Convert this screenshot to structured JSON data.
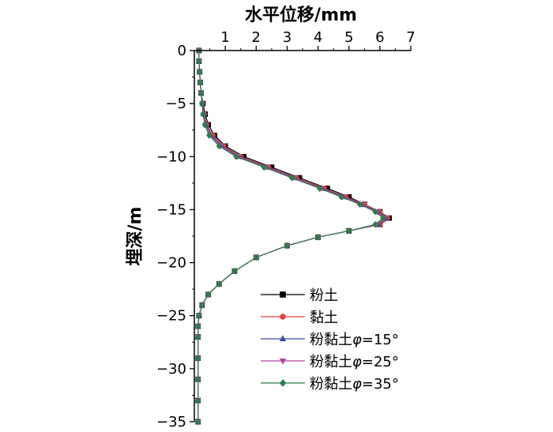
{
  "chart_data": {
    "type": "line",
    "xlabel": "水平位移/mm",
    "ylabel": "埋深/m",
    "xlim": [
      0,
      7
    ],
    "ylim": [
      -35,
      0
    ],
    "x_ticks": [
      1,
      2,
      3,
      4,
      5,
      6,
      7
    ],
    "x_tick_labels": [
      "1",
      "2",
      "3",
      "4",
      "5",
      "6",
      "7"
    ],
    "y_ticks": [
      0,
      -5,
      -10,
      -15,
      -20,
      -25,
      -30,
      -35
    ],
    "y_tick_labels": [
      "0",
      "−5",
      "−10",
      "−15",
      "−20",
      "−25",
      "−30",
      "−35"
    ],
    "x_axis_position": "top",
    "grid": false,
    "legend_position": "bottom-right",
    "series": [
      {
        "name": "粉土",
        "color": "#000000",
        "marker": "square",
        "points": [
          [
            0.15,
            0
          ],
          [
            0.15,
            -1
          ],
          [
            0.17,
            -2
          ],
          [
            0.19,
            -3
          ],
          [
            0.22,
            -4
          ],
          [
            0.28,
            -5
          ],
          [
            0.35,
            -6
          ],
          [
            0.45,
            -7
          ],
          [
            0.65,
            -8
          ],
          [
            1.0,
            -9
          ],
          [
            1.6,
            -10
          ],
          [
            2.5,
            -11
          ],
          [
            3.4,
            -12
          ],
          [
            4.3,
            -13
          ],
          [
            5.0,
            -13.8
          ],
          [
            5.5,
            -14.5
          ],
          [
            6.0,
            -15.2
          ],
          [
            6.3,
            -15.8
          ],
          [
            6.0,
            -16.4
          ],
          [
            5.0,
            -17.0
          ],
          [
            4.0,
            -17.6
          ],
          [
            3.0,
            -18.4
          ],
          [
            2.0,
            -19.5
          ],
          [
            1.3,
            -20.8
          ],
          [
            0.8,
            -22
          ],
          [
            0.45,
            -23
          ],
          [
            0.25,
            -24
          ],
          [
            0.15,
            -25
          ],
          [
            0.12,
            -26
          ],
          [
            0.12,
            -27
          ],
          [
            0.12,
            -29
          ],
          [
            0.12,
            -31
          ],
          [
            0.12,
            -33
          ],
          [
            0.12,
            -35
          ]
        ]
      },
      {
        "name": "黏土",
        "color": "#e8423a",
        "marker": "circle",
        "points": [
          [
            0.15,
            0
          ],
          [
            0.15,
            -1
          ],
          [
            0.17,
            -2
          ],
          [
            0.19,
            -3
          ],
          [
            0.22,
            -4
          ],
          [
            0.26,
            -5
          ],
          [
            0.32,
            -6
          ],
          [
            0.4,
            -7
          ],
          [
            0.6,
            -8
          ],
          [
            0.95,
            -9
          ],
          [
            1.5,
            -10
          ],
          [
            2.4,
            -11
          ],
          [
            3.3,
            -12
          ],
          [
            4.2,
            -13
          ],
          [
            4.9,
            -13.8
          ],
          [
            5.5,
            -14.5
          ],
          [
            6.0,
            -15.2
          ],
          [
            6.25,
            -15.8
          ],
          [
            6.0,
            -16.4
          ],
          [
            5.0,
            -17.0
          ],
          [
            4.0,
            -17.6
          ],
          [
            3.0,
            -18.4
          ],
          [
            2.0,
            -19.5
          ],
          [
            1.3,
            -20.8
          ],
          [
            0.8,
            -22
          ],
          [
            0.45,
            -23
          ],
          [
            0.25,
            -24
          ],
          [
            0.15,
            -25
          ],
          [
            0.12,
            -26
          ],
          [
            0.12,
            -27
          ],
          [
            0.12,
            -29
          ],
          [
            0.12,
            -31
          ],
          [
            0.12,
            -33
          ],
          [
            0.12,
            -35
          ]
        ]
      },
      {
        "name": "粉黏土φ=15°",
        "color": "#3b4a9c",
        "marker": "triangle-up",
        "points": [
          [
            0.15,
            0
          ],
          [
            0.15,
            -1
          ],
          [
            0.17,
            -2
          ],
          [
            0.19,
            -3
          ],
          [
            0.22,
            -4
          ],
          [
            0.26,
            -5
          ],
          [
            0.3,
            -6
          ],
          [
            0.38,
            -7
          ],
          [
            0.55,
            -8
          ],
          [
            0.9,
            -9
          ],
          [
            1.45,
            -10
          ],
          [
            2.35,
            -11
          ],
          [
            3.25,
            -12
          ],
          [
            4.15,
            -13
          ],
          [
            4.85,
            -13.8
          ],
          [
            5.45,
            -14.5
          ],
          [
            5.95,
            -15.2
          ],
          [
            6.2,
            -15.8
          ],
          [
            5.95,
            -16.4
          ],
          [
            5.0,
            -17.0
          ],
          [
            4.0,
            -17.6
          ],
          [
            3.0,
            -18.4
          ],
          [
            2.0,
            -19.5
          ],
          [
            1.3,
            -20.8
          ],
          [
            0.8,
            -22
          ],
          [
            0.45,
            -23
          ],
          [
            0.25,
            -24
          ],
          [
            0.15,
            -25
          ],
          [
            0.12,
            -26
          ],
          [
            0.12,
            -27
          ],
          [
            0.12,
            -29
          ],
          [
            0.12,
            -31
          ],
          [
            0.12,
            -33
          ],
          [
            0.12,
            -35
          ]
        ]
      },
      {
        "name": "粉黏土φ=25°",
        "color": "#b3449e",
        "marker": "triangle-down",
        "points": [
          [
            0.15,
            0
          ],
          [
            0.15,
            -1
          ],
          [
            0.17,
            -2
          ],
          [
            0.19,
            -3
          ],
          [
            0.22,
            -4
          ],
          [
            0.25,
            -5
          ],
          [
            0.3,
            -6
          ],
          [
            0.36,
            -7
          ],
          [
            0.5,
            -8
          ],
          [
            0.85,
            -9
          ],
          [
            1.4,
            -10
          ],
          [
            2.3,
            -11
          ],
          [
            3.2,
            -12
          ],
          [
            4.1,
            -13
          ],
          [
            4.8,
            -13.8
          ],
          [
            5.4,
            -14.5
          ],
          [
            5.9,
            -15.2
          ],
          [
            6.15,
            -15.8
          ],
          [
            5.9,
            -16.4
          ],
          [
            5.0,
            -17.0
          ],
          [
            4.0,
            -17.6
          ],
          [
            3.0,
            -18.4
          ],
          [
            2.0,
            -19.5
          ],
          [
            1.3,
            -20.8
          ],
          [
            0.8,
            -22
          ],
          [
            0.45,
            -23
          ],
          [
            0.25,
            -24
          ],
          [
            0.15,
            -25
          ],
          [
            0.12,
            -26
          ],
          [
            0.12,
            -27
          ],
          [
            0.12,
            -29
          ],
          [
            0.12,
            -31
          ],
          [
            0.12,
            -33
          ],
          [
            0.12,
            -35
          ]
        ]
      },
      {
        "name": "粉黏土φ=35°",
        "color": "#2f7d4a",
        "marker": "diamond",
        "points": [
          [
            0.15,
            0
          ],
          [
            0.15,
            -1
          ],
          [
            0.17,
            -2
          ],
          [
            0.19,
            -3
          ],
          [
            0.22,
            -4
          ],
          [
            0.25,
            -5
          ],
          [
            0.28,
            -6
          ],
          [
            0.34,
            -7
          ],
          [
            0.48,
            -8
          ],
          [
            0.8,
            -9
          ],
          [
            1.35,
            -10
          ],
          [
            2.25,
            -11
          ],
          [
            3.15,
            -12
          ],
          [
            4.05,
            -13
          ],
          [
            4.75,
            -13.8
          ],
          [
            5.35,
            -14.5
          ],
          [
            5.85,
            -15.2
          ],
          [
            6.1,
            -15.8
          ],
          [
            5.85,
            -16.4
          ],
          [
            5.0,
            -17.0
          ],
          [
            4.0,
            -17.6
          ],
          [
            3.0,
            -18.4
          ],
          [
            2.0,
            -19.5
          ],
          [
            1.3,
            -20.8
          ],
          [
            0.8,
            -22
          ],
          [
            0.45,
            -23
          ],
          [
            0.25,
            -24
          ],
          [
            0.15,
            -25
          ],
          [
            0.12,
            -26
          ],
          [
            0.12,
            -27
          ],
          [
            0.12,
            -29
          ],
          [
            0.12,
            -31
          ],
          [
            0.12,
            -33
          ],
          [
            0.12,
            -35
          ]
        ]
      }
    ]
  }
}
